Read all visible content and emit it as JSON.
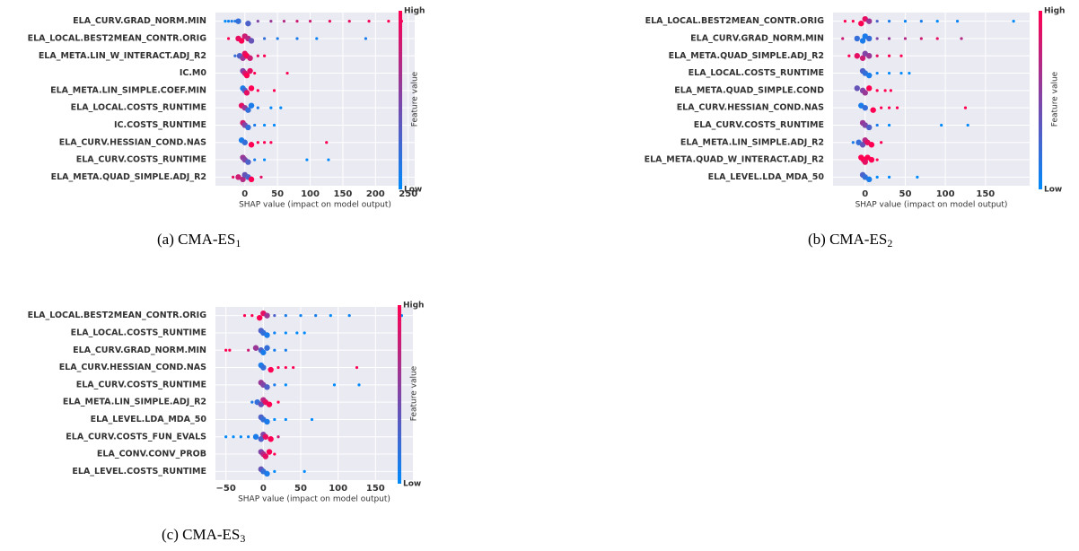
{
  "chart_data": [
    {
      "type": "beeswarm",
      "caption": "(a) CMA-ES",
      "caption_subscript": "1",
      "xlabel": "SHAP value (impact on model output)",
      "colorbar_label": "Feature value",
      "colorbar_high": "High",
      "colorbar_low": "Low",
      "colormap": [
        "#008afb",
        "#ff0052"
      ],
      "grid": true,
      "xlim": [
        -45,
        260
      ],
      "xticks": [
        0,
        50,
        100,
        150,
        200,
        250
      ],
      "features": [
        {
          "name": "ELA_CURV.GRAD_NORM.MIN",
          "shap": [
            -30,
            -25,
            -20,
            -15,
            -10,
            5,
            20,
            40,
            60,
            80,
            100,
            130,
            160,
            190,
            220,
            240
          ],
          "feature_value": [
            0,
            0.05,
            0.1,
            0.1,
            0.2,
            0.3,
            0.5,
            0.6,
            0.7,
            0.8,
            0.8,
            0.9,
            0.9,
            0.95,
            1,
            1
          ]
        },
        {
          "name": "ELA_LOCAL.BEST2MEAN_CONTR.ORIG",
          "shap": [
            -25,
            -10,
            -5,
            0,
            5,
            10,
            30,
            50,
            80,
            110,
            185
          ],
          "feature_value": [
            1,
            0.9,
            1,
            0.8,
            0.7,
            0.4,
            0.2,
            0.1,
            0.1,
            0.05,
            0.1
          ]
        },
        {
          "name": "ELA_META.LIN_W_INTERACT.ADJ_R2",
          "shap": [
            -15,
            -8,
            -3,
            0,
            3,
            8,
            20,
            30
          ],
          "feature_value": [
            0.2,
            0.3,
            0.6,
            0.9,
            1,
            0.8,
            0.9,
            1
          ]
        },
        {
          "name": "IC.M0",
          "shap": [
            -3,
            0,
            3,
            8,
            15,
            65
          ],
          "feature_value": [
            0.5,
            0.8,
            1,
            0.9,
            1,
            1
          ]
        },
        {
          "name": "ELA_META.LIN_SIMPLE.COEF.MIN",
          "shap": [
            -3,
            0,
            3,
            10,
            20,
            45
          ],
          "feature_value": [
            0.1,
            0.3,
            0.9,
            1,
            1,
            1
          ]
        },
        {
          "name": "ELA_LOCAL.COSTS_RUNTIME",
          "shap": [
            -5,
            0,
            5,
            10,
            20,
            40,
            55
          ],
          "feature_value": [
            0.9,
            0.6,
            0.2,
            0.1,
            0.1,
            0,
            0
          ]
        },
        {
          "name": "IC.COSTS_RUNTIME",
          "shap": [
            -3,
            0,
            5,
            15,
            30,
            45
          ],
          "feature_value": [
            0.8,
            0.5,
            0.2,
            0.1,
            0,
            0
          ]
        },
        {
          "name": "ELA_CURV.HESSIAN_COND.NAS",
          "shap": [
            -5,
            0,
            10,
            20,
            30,
            40,
            125
          ],
          "feature_value": [
            0.1,
            0.2,
            1,
            1,
            1,
            1,
            1
          ]
        },
        {
          "name": "ELA_CURV.COSTS_RUNTIME",
          "shap": [
            -3,
            0,
            5,
            15,
            30,
            95,
            128
          ],
          "feature_value": [
            0.6,
            0.5,
            0.3,
            0.1,
            0,
            0,
            0
          ]
        },
        {
          "name": "ELA_META.QUAD_SIMPLE.ADJ_R2",
          "shap": [
            -18,
            -10,
            -3,
            0,
            5,
            10,
            25
          ],
          "feature_value": [
            0.9,
            0.8,
            0.7,
            0.4,
            0.3,
            1,
            0.9
          ]
        }
      ]
    },
    {
      "type": "beeswarm",
      "caption": "(b) CMA-ES",
      "caption_subscript": "2",
      "xlabel": "SHAP value (impact on model output)",
      "colorbar_label": "Feature value",
      "colorbar_high": "High",
      "colorbar_low": "Low",
      "colormap": [
        "#008afb",
        "#ff0052"
      ],
      "grid": true,
      "xlim": [
        -40,
        205
      ],
      "xticks": [
        0,
        50,
        100,
        150
      ],
      "features": [
        {
          "name": "ELA_LOCAL.BEST2MEAN_CONTR.ORIG",
          "shap": [
            -25,
            -15,
            -5,
            0,
            5,
            15,
            30,
            50,
            70,
            90,
            115,
            185
          ],
          "feature_value": [
            1,
            1,
            1,
            0.9,
            0.6,
            0.3,
            0.1,
            0.05,
            0.1,
            0,
            0.05,
            0
          ]
        },
        {
          "name": "ELA_CURV.GRAD_NORM.MIN",
          "shap": [
            -28,
            -10,
            -3,
            0,
            5,
            15,
            30,
            50,
            70,
            90,
            120
          ],
          "feature_value": [
            0.8,
            0.2,
            0.1,
            0.1,
            0.2,
            0.5,
            0.6,
            0.7,
            0.8,
            0.9,
            0.7
          ]
        },
        {
          "name": "ELA_META.QUAD_SIMPLE.ADJ_R2",
          "shap": [
            -20,
            -10,
            -3,
            0,
            5,
            15,
            30,
            45
          ],
          "feature_value": [
            1,
            0.9,
            0.8,
            0.5,
            0.6,
            0.9,
            1,
            1
          ]
        },
        {
          "name": "ELA_LOCAL.COSTS_RUNTIME",
          "shap": [
            -3,
            0,
            5,
            15,
            30,
            45,
            55
          ],
          "feature_value": [
            0.3,
            0.2,
            0.1,
            0.05,
            0,
            0,
            0
          ]
        },
        {
          "name": "ELA_META.QUAD_SIMPLE.COND",
          "shap": [
            -10,
            -3,
            0,
            5,
            15,
            25,
            32
          ],
          "feature_value": [
            0.4,
            0.5,
            0.6,
            1,
            1,
            1,
            1
          ]
        },
        {
          "name": "ELA_CURV.HESSIAN_COND.NAS",
          "shap": [
            -5,
            0,
            10,
            20,
            30,
            40,
            125
          ],
          "feature_value": [
            0.1,
            0.2,
            1,
            1,
            1,
            1,
            1
          ]
        },
        {
          "name": "ELA_CURV.COSTS_RUNTIME",
          "shap": [
            -3,
            0,
            5,
            15,
            30,
            95,
            128
          ],
          "feature_value": [
            0.6,
            0.5,
            0.3,
            0.1,
            0,
            0,
            0
          ]
        },
        {
          "name": "ELA_META.LIN_SIMPLE.ADJ_R2",
          "shap": [
            -15,
            -8,
            -3,
            0,
            3,
            8,
            20
          ],
          "feature_value": [
            0.1,
            0.2,
            0.4,
            0.7,
            0.9,
            1,
            1
          ]
        },
        {
          "name": "ELA_META.QUAD_W_INTERACT.ADJ_R2",
          "shap": [
            -5,
            -2,
            0,
            3,
            8,
            15
          ],
          "feature_value": [
            1,
            1,
            0.9,
            1,
            1,
            1
          ]
        },
        {
          "name": "ELA_LEVEL.LDA_MDA_50",
          "shap": [
            -3,
            0,
            5,
            15,
            30,
            65
          ],
          "feature_value": [
            0.3,
            0.2,
            0.1,
            0,
            0,
            0
          ]
        }
      ]
    },
    {
      "type": "beeswarm",
      "caption": "(c) CMA-ES",
      "caption_subscript": "3",
      "xlabel": "SHAP value (impact on model output)",
      "colorbar_label": "Feature value",
      "colorbar_high": "High",
      "colorbar_low": "Low",
      "colormap": [
        "#008afb",
        "#ff0052"
      ],
      "grid": true,
      "xlim": [
        -64,
        200
      ],
      "xticks": [
        {
          "value": -50,
          "label": "−50"
        },
        0,
        50,
        100,
        150
      ],
      "features": [
        {
          "name": "ELA_LOCAL.BEST2MEAN_CONTR.ORIG",
          "shap": [
            -25,
            -15,
            -5,
            0,
            5,
            15,
            30,
            50,
            70,
            90,
            115,
            185
          ],
          "feature_value": [
            1,
            1,
            1,
            0.9,
            0.6,
            0.3,
            0.1,
            0.05,
            0.1,
            0,
            0.05,
            0
          ]
        },
        {
          "name": "ELA_LOCAL.COSTS_RUNTIME",
          "shap": [
            -3,
            0,
            5,
            15,
            30,
            45,
            55
          ],
          "feature_value": [
            0.3,
            0.2,
            0.1,
            0.05,
            0,
            0,
            0
          ]
        },
        {
          "name": "ELA_CURV.GRAD_NORM.MIN",
          "shap": [
            -50,
            -45,
            -20,
            -10,
            -3,
            0,
            5,
            15,
            30
          ],
          "feature_value": [
            1,
            1,
            0.8,
            0.6,
            0.3,
            0.1,
            0.2,
            0.1,
            0.1
          ]
        },
        {
          "name": "ELA_CURV.HESSIAN_COND.NAS",
          "shap": [
            -3,
            0,
            10,
            20,
            30,
            40,
            125
          ],
          "feature_value": [
            0.1,
            0.2,
            1,
            1,
            1,
            1,
            1
          ]
        },
        {
          "name": "ELA_CURV.COSTS_RUNTIME",
          "shap": [
            -3,
            0,
            5,
            15,
            30,
            95,
            128
          ],
          "feature_value": [
            0.6,
            0.5,
            0.3,
            0.1,
            0,
            0,
            0
          ]
        },
        {
          "name": "ELA_META.LIN_SIMPLE.ADJ_R2",
          "shap": [
            -15,
            -8,
            -3,
            0,
            3,
            8,
            20
          ],
          "feature_value": [
            0.1,
            0.2,
            0.4,
            0.7,
            0.9,
            1,
            1
          ]
        },
        {
          "name": "ELA_LEVEL.LDA_MDA_50",
          "shap": [
            -3,
            0,
            5,
            15,
            30,
            65
          ],
          "feature_value": [
            0.3,
            0.2,
            0.1,
            0,
            0,
            0
          ]
        },
        {
          "name": "ELA_CURV.COSTS_FUN_EVALS",
          "shap": [
            -50,
            -40,
            -30,
            -20,
            -10,
            -3,
            0,
            3,
            10,
            20
          ],
          "feature_value": [
            0,
            0,
            0,
            0.05,
            0.1,
            0.3,
            0.5,
            0.9,
            1,
            0.8
          ]
        },
        {
          "name": "ELA_CONV.CONV_PROB",
          "shap": [
            -3,
            0,
            3,
            8,
            15
          ],
          "feature_value": [
            0.5,
            0.7,
            0.9,
            1,
            1
          ]
        },
        {
          "name": "ELA_LEVEL.COSTS_RUNTIME",
          "shap": [
            -3,
            0,
            5,
            15,
            55
          ],
          "feature_value": [
            0.4,
            0.2,
            0.1,
            0,
            0
          ]
        }
      ]
    }
  ]
}
